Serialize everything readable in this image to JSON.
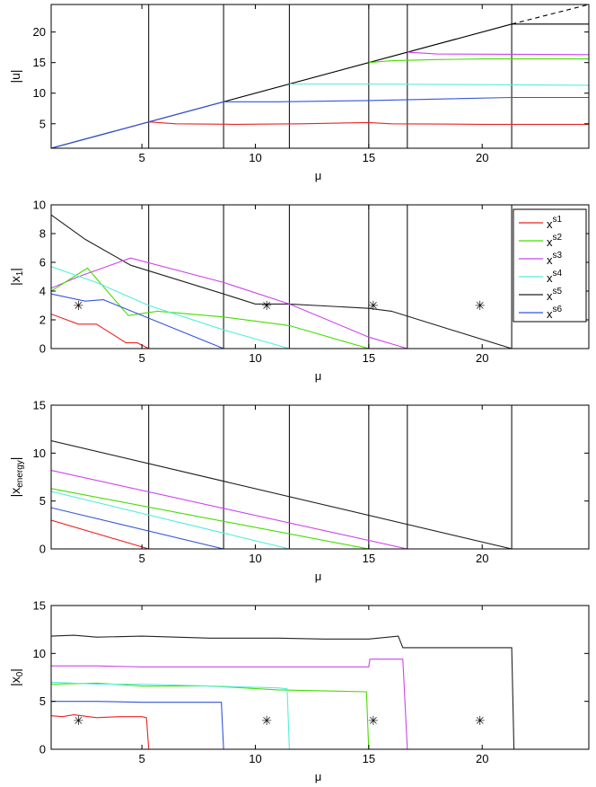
{
  "chart_data": [
    {
      "type": "line",
      "ylabel": "|u|",
      "xlabel": "μ",
      "xlim": [
        1,
        24.7
      ],
      "ylim": [
        1,
        24.5
      ],
      "xticks": [
        5,
        10,
        15,
        20
      ],
      "yticks": [
        5,
        10,
        15,
        20
      ],
      "vlines": [
        5.3,
        8.6,
        11.5,
        15.0,
        16.7,
        21.3
      ],
      "series": [
        {
          "name": "u-s5",
          "color": "#000000",
          "x": [
            1,
            21.3
          ],
          "y": [
            1,
            21.3
          ]
        },
        {
          "name": "u-s5-cont",
          "color": "#000000",
          "x": [
            21.3,
            24.7
          ],
          "y": [
            21.3,
            21.3
          ]
        },
        {
          "name": "u-ref-dashed",
          "color": "#000000",
          "dashed": true,
          "x": [
            21.3,
            24.7
          ],
          "y": [
            21.3,
            24.5
          ]
        },
        {
          "name": "u-s3",
          "color": "#cc44ee",
          "x": [
            16.7,
            18,
            24.7
          ],
          "y": [
            16.7,
            16.4,
            16.3
          ]
        },
        {
          "name": "u-s2",
          "color": "#44dd00",
          "x": [
            15.0,
            16,
            18,
            20,
            24.7
          ],
          "y": [
            15.0,
            15.3,
            15.5,
            15.6,
            15.6
          ]
        },
        {
          "name": "u-s4",
          "color": "#55eedd",
          "x": [
            11.5,
            15,
            20,
            24.7
          ],
          "y": [
            11.5,
            11.5,
            11.4,
            11.3
          ]
        },
        {
          "name": "u-s6",
          "color": "#3355dd",
          "x": [
            1,
            8.6,
            11,
            15,
            21.3,
            24.7
          ],
          "y": [
            1,
            8.6,
            8.6,
            8.8,
            9.3,
            9.3
          ]
        },
        {
          "name": "u-s1",
          "color": "#ee2222",
          "x": [
            5.3,
            6.5,
            9,
            12,
            15,
            16,
            20,
            24.7
          ],
          "y": [
            5.3,
            5.0,
            4.9,
            5.0,
            5.2,
            5.0,
            4.9,
            4.9
          ]
        }
      ]
    },
    {
      "type": "line",
      "ylabel": "|x",
      "ylabel_sub": "1",
      "ylabel_end": "|",
      "xlabel": "μ",
      "xlim": [
        1,
        24.7
      ],
      "ylim": [
        0,
        10
      ],
      "xticks": [
        5,
        10,
        15,
        20
      ],
      "yticks": [
        0,
        2,
        4,
        6,
        8,
        10
      ],
      "vlines": [
        5.3,
        8.6,
        11.5,
        15.0,
        16.7,
        21.3
      ],
      "stars": [
        [
          2.2,
          3.0
        ],
        [
          10.5,
          3.0
        ],
        [
          15.2,
          3.0
        ],
        [
          19.9,
          3.0
        ]
      ],
      "legend": {
        "position": "top-right",
        "entries": [
          {
            "base": "x",
            "sup": "s1",
            "color": "#ee2222"
          },
          {
            "base": "x",
            "sup": "s2",
            "color": "#44dd00"
          },
          {
            "base": "x",
            "sup": "s3",
            "color": "#cc44ee"
          },
          {
            "base": "x",
            "sup": "s4",
            "color": "#55eedd"
          },
          {
            "base": "x",
            "sup": "s5",
            "color": "#222222"
          },
          {
            "base": "x",
            "sup": "s6",
            "color": "#3355dd"
          }
        ]
      },
      "series": [
        {
          "name": "x1-s5",
          "color": "#222222",
          "x": [
            1,
            2.5,
            4.5,
            8.6,
            10,
            11.5,
            15,
            16,
            21.3,
            24.7
          ],
          "y": [
            9.3,
            7.6,
            5.8,
            3.8,
            3.1,
            3.1,
            2.8,
            2.6,
            0,
            0
          ]
        },
        {
          "name": "x1-s3",
          "color": "#cc44ee",
          "x": [
            1,
            2.2,
            4.5,
            8.6,
            11.5,
            15,
            16.7,
            24.7
          ],
          "y": [
            4.2,
            5.0,
            6.3,
            4.6,
            3.1,
            0.8,
            0,
            0
          ]
        },
        {
          "name": "x1-s2",
          "color": "#44dd00",
          "x": [
            1,
            2.6,
            4.4,
            5.7,
            8.6,
            11.5,
            15,
            24.7
          ],
          "y": [
            4.0,
            5.6,
            2.3,
            2.6,
            2.2,
            1.6,
            0,
            0
          ]
        },
        {
          "name": "x1-s4",
          "color": "#55eedd",
          "x": [
            1,
            3,
            5.3,
            8.6,
            11.5,
            24.7
          ],
          "y": [
            5.7,
            4.6,
            3.0,
            1.3,
            0,
            0
          ]
        },
        {
          "name": "x1-s6",
          "color": "#3355dd",
          "x": [
            1,
            2.5,
            3.3,
            8.6,
            24.7
          ],
          "y": [
            3.8,
            3.3,
            3.4,
            0,
            0
          ]
        },
        {
          "name": "x1-s1",
          "color": "#ee2222",
          "x": [
            1,
            2.2,
            3,
            4.3,
            4.8,
            5.3,
            24.7
          ],
          "y": [
            2.4,
            1.7,
            1.7,
            0.4,
            0.4,
            0,
            0
          ]
        }
      ]
    },
    {
      "type": "line",
      "ylabel": "|x",
      "ylabel_sub": "energy",
      "ylabel_end": "|",
      "xlabel": "μ",
      "xlim": [
        1,
        24.7
      ],
      "ylim": [
        0,
        15
      ],
      "xticks": [
        5,
        10,
        15,
        20
      ],
      "yticks": [
        0,
        5,
        10,
        15
      ],
      "vlines": [
        5.3,
        8.6,
        11.5,
        15.0,
        16.7,
        21.3
      ],
      "series": [
        {
          "name": "xe-s5",
          "color": "#222222",
          "x": [
            1,
            21.3,
            24.7
          ],
          "y": [
            11.3,
            0,
            0
          ]
        },
        {
          "name": "xe-s3",
          "color": "#cc44ee",
          "x": [
            1,
            16.7,
            24.7
          ],
          "y": [
            8.2,
            0,
            0
          ]
        },
        {
          "name": "xe-s2",
          "color": "#44dd00",
          "x": [
            1,
            15.0,
            24.7
          ],
          "y": [
            6.3,
            0,
            0
          ]
        },
        {
          "name": "xe-s4",
          "color": "#55eedd",
          "x": [
            1,
            11.5,
            24.7
          ],
          "y": [
            6.0,
            0,
            0
          ]
        },
        {
          "name": "xe-s6",
          "color": "#3355dd",
          "x": [
            1,
            8.6,
            24.7
          ],
          "y": [
            4.3,
            0,
            0
          ]
        },
        {
          "name": "xe-s1",
          "color": "#ee2222",
          "x": [
            1,
            5.3,
            24.7
          ],
          "y": [
            3.0,
            0,
            0
          ]
        }
      ]
    },
    {
      "type": "line",
      "ylabel": "|x",
      "ylabel_sub": "0",
      "ylabel_end": "|",
      "xlabel": "μ",
      "xlim": [
        1,
        24.7
      ],
      "ylim": [
        0,
        15
      ],
      "xticks": [
        5,
        10,
        15,
        20
      ],
      "yticks": [
        0,
        5,
        10,
        15
      ],
      "stars": [
        [
          2.2,
          3.0
        ],
        [
          10.5,
          3.0
        ],
        [
          15.2,
          3.0
        ],
        [
          19.9,
          3.0
        ]
      ],
      "series": [
        {
          "name": "x0-s5",
          "color": "#222222",
          "x": [
            1,
            2,
            3,
            5,
            8,
            11,
            13,
            15,
            16.3,
            16.5,
            21.3,
            21.4,
            24.7
          ],
          "y": [
            11.8,
            11.9,
            11.7,
            11.8,
            11.6,
            11.6,
            11.5,
            11.5,
            11.8,
            10.6,
            10.6,
            0,
            0
          ]
        },
        {
          "name": "x0-s3",
          "color": "#cc44ee",
          "x": [
            1,
            3,
            5,
            8,
            11,
            15,
            15.05,
            16.5,
            16.7,
            24.7
          ],
          "y": [
            8.7,
            8.7,
            8.6,
            8.6,
            8.6,
            8.6,
            9.4,
            9.4,
            0,
            0
          ]
        },
        {
          "name": "x0-s2",
          "color": "#44dd00",
          "x": [
            1,
            3,
            5,
            8,
            11,
            14.9,
            15.0,
            24.7
          ],
          "y": [
            6.8,
            6.9,
            6.6,
            6.6,
            6.2,
            6.0,
            0,
            0
          ]
        },
        {
          "name": "x0-s4",
          "color": "#55eedd",
          "x": [
            1,
            3,
            5,
            8,
            11,
            11.4,
            11.5,
            24.7
          ],
          "y": [
            7.0,
            6.8,
            6.8,
            6.6,
            6.4,
            6.3,
            0,
            0
          ]
        },
        {
          "name": "x0-s6",
          "color": "#3355dd",
          "x": [
            1,
            3,
            5,
            8.5,
            8.6,
            24.7
          ],
          "y": [
            5.0,
            5.0,
            4.9,
            4.9,
            0,
            0
          ]
        },
        {
          "name": "x0-s1",
          "color": "#ee2222",
          "x": [
            1,
            1.5,
            2,
            3,
            4,
            5,
            5.2,
            5.3,
            24.7
          ],
          "y": [
            3.5,
            3.4,
            3.6,
            3.3,
            3.4,
            3.4,
            3.3,
            0,
            0
          ]
        }
      ]
    }
  ]
}
